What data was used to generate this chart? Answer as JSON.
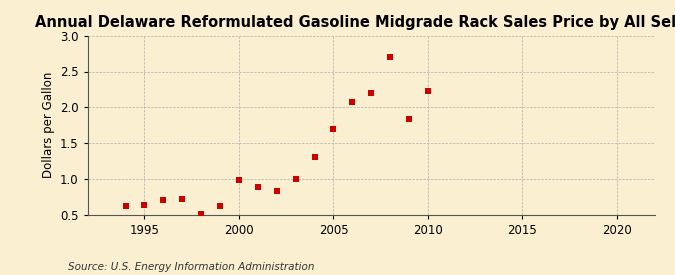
{
  "title": "Annual Delaware Reformulated Gasoline Midgrade Rack Sales Price by All Sellers",
  "ylabel": "Dollars per Gallon",
  "source": "Source: U.S. Energy Information Administration",
  "background_color": "#faefd0",
  "years": [
    1994,
    1995,
    1996,
    1997,
    1998,
    1999,
    2000,
    2001,
    2002,
    2003,
    2004,
    2005,
    2006,
    2007,
    2008,
    2009,
    2010
  ],
  "values": [
    0.62,
    0.63,
    0.7,
    0.71,
    0.51,
    0.62,
    0.98,
    0.88,
    0.83,
    1.0,
    1.3,
    1.7,
    2.08,
    2.2,
    2.7,
    1.84,
    2.23
  ],
  "marker_color": "#cc0000",
  "xlim": [
    1992,
    2022
  ],
  "ylim": [
    0.5,
    3.0
  ],
  "xticks": [
    1995,
    2000,
    2005,
    2010,
    2015,
    2020
  ],
  "yticks": [
    0.5,
    1.0,
    1.5,
    2.0,
    2.5,
    3.0
  ],
  "title_fontsize": 10.5,
  "label_fontsize": 8.5,
  "tick_fontsize": 8.5,
  "source_fontsize": 7.5
}
